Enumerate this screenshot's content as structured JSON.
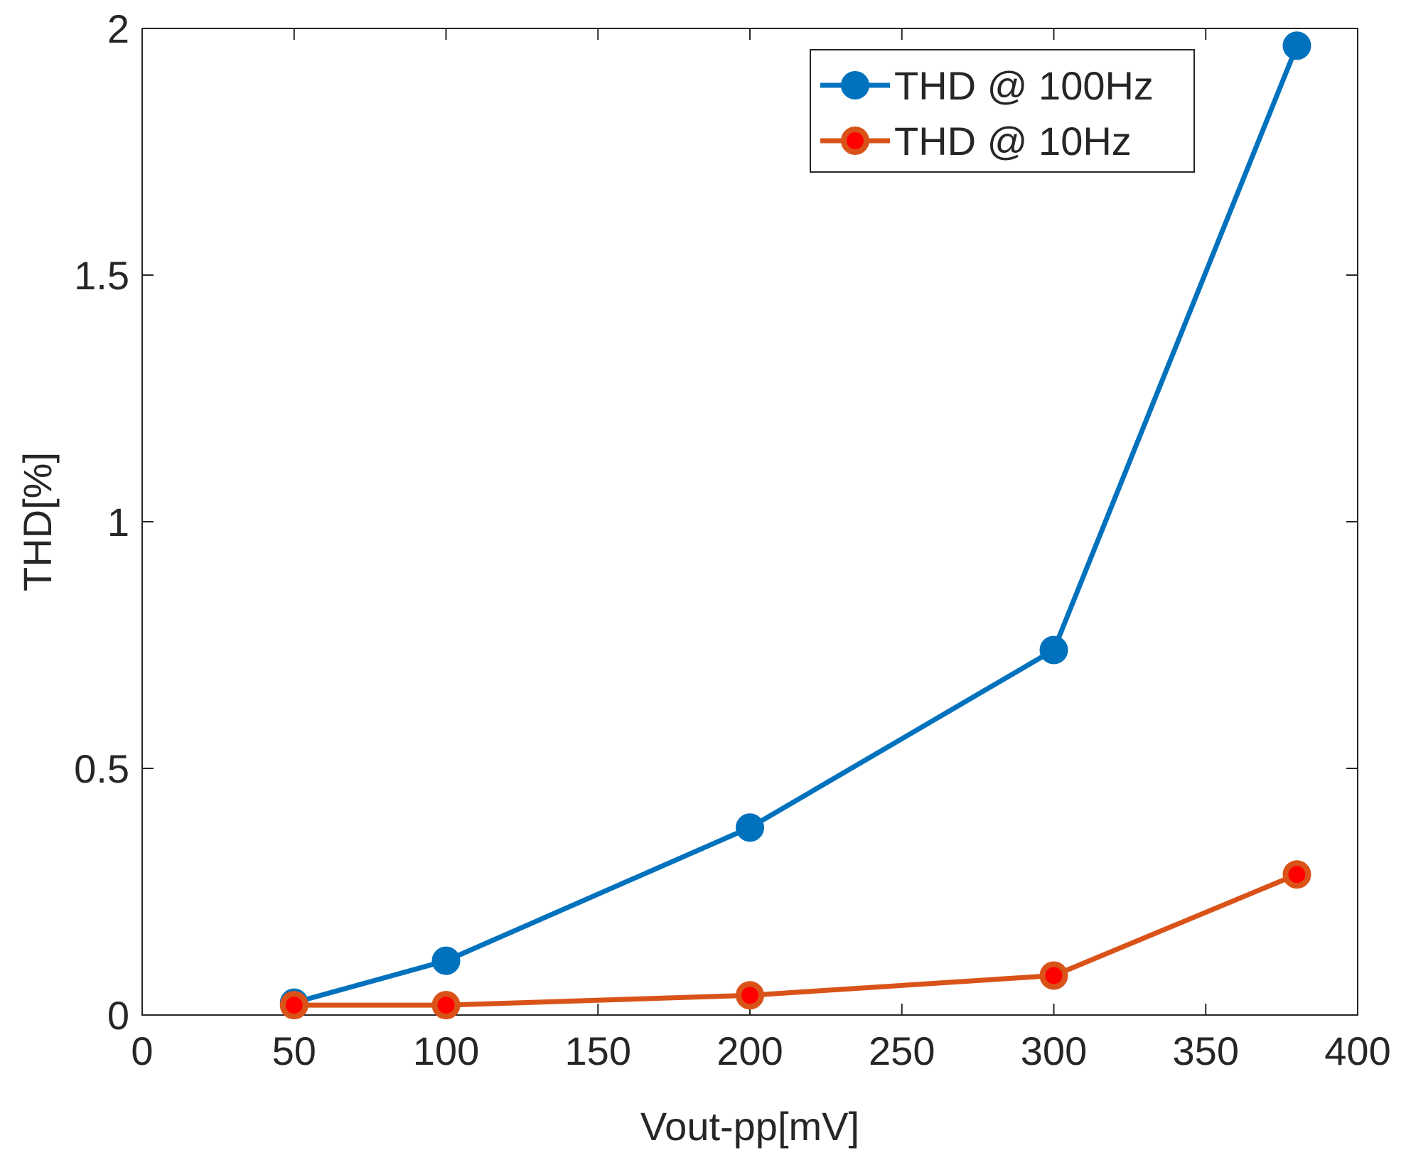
{
  "chart_data": {
    "type": "line",
    "title": "",
    "xlabel": "Vout-pp[mV]",
    "ylabel": "THD[%]",
    "xlim": [
      0,
      400
    ],
    "ylim": [
      0,
      2
    ],
    "x_ticks": [
      0,
      50,
      100,
      150,
      200,
      250,
      300,
      350,
      400
    ],
    "x_tick_labels": [
      "0",
      "50",
      "100",
      "150",
      "200",
      "250",
      "300",
      "350",
      "400"
    ],
    "y_ticks": [
      0,
      0.5,
      1,
      1.5,
      2
    ],
    "y_tick_labels": [
      "0",
      "0.5",
      "1",
      "1.5",
      "2"
    ],
    "grid": false,
    "legend_position": "top-right",
    "x": [
      50,
      100,
      200,
      300,
      380
    ],
    "series": [
      {
        "name": "THD @ 100Hz",
        "values": [
          0.025,
          0.11,
          0.38,
          0.74,
          1.965
        ],
        "line_color": "#0072BD",
        "marker_color": "#0072BD"
      },
      {
        "name": "THD @ 10Hz",
        "values": [
          0.02,
          0.02,
          0.04,
          0.08,
          0.285
        ],
        "line_color": "#D95319",
        "marker_color": "#FF0000"
      }
    ]
  }
}
